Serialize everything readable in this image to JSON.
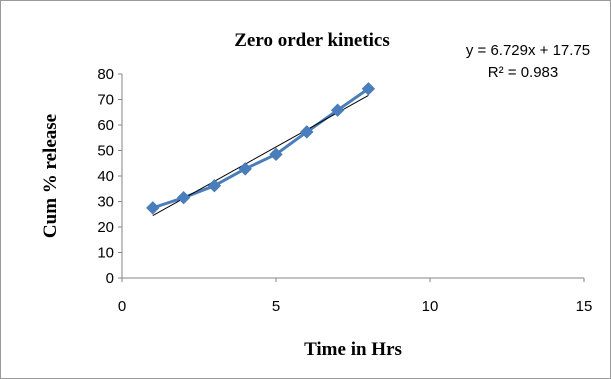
{
  "chart_data": {
    "type": "scatter",
    "title": "Zero order kinetics",
    "xlabel": "Time in Hrs",
    "ylabel": "Cum % release",
    "xlim": [
      0,
      15
    ],
    "ylim": [
      0,
      80
    ],
    "xticks": [
      0,
      5,
      10,
      15
    ],
    "yticks": [
      0,
      10,
      20,
      30,
      40,
      50,
      60,
      70,
      80
    ],
    "grid": false,
    "legend": "none",
    "series": [
      {
        "x": [
          1,
          2,
          3,
          4,
          5,
          6,
          7,
          8
        ],
        "values": [
          27.5,
          31.5,
          36.2,
          42.8,
          48.5,
          57.3,
          65.8,
          74.2
        ],
        "color": "#4a7ebb",
        "marker": "diamond",
        "connected": true
      }
    ],
    "trendline": {
      "type": "linear",
      "slope": 6.729,
      "intercept": 17.75,
      "x_range": [
        1,
        8
      ],
      "color": "#000000"
    },
    "annotations": {
      "equation": "y = 6.729x + 17.75",
      "r_squared": "R² = 0.983"
    }
  }
}
